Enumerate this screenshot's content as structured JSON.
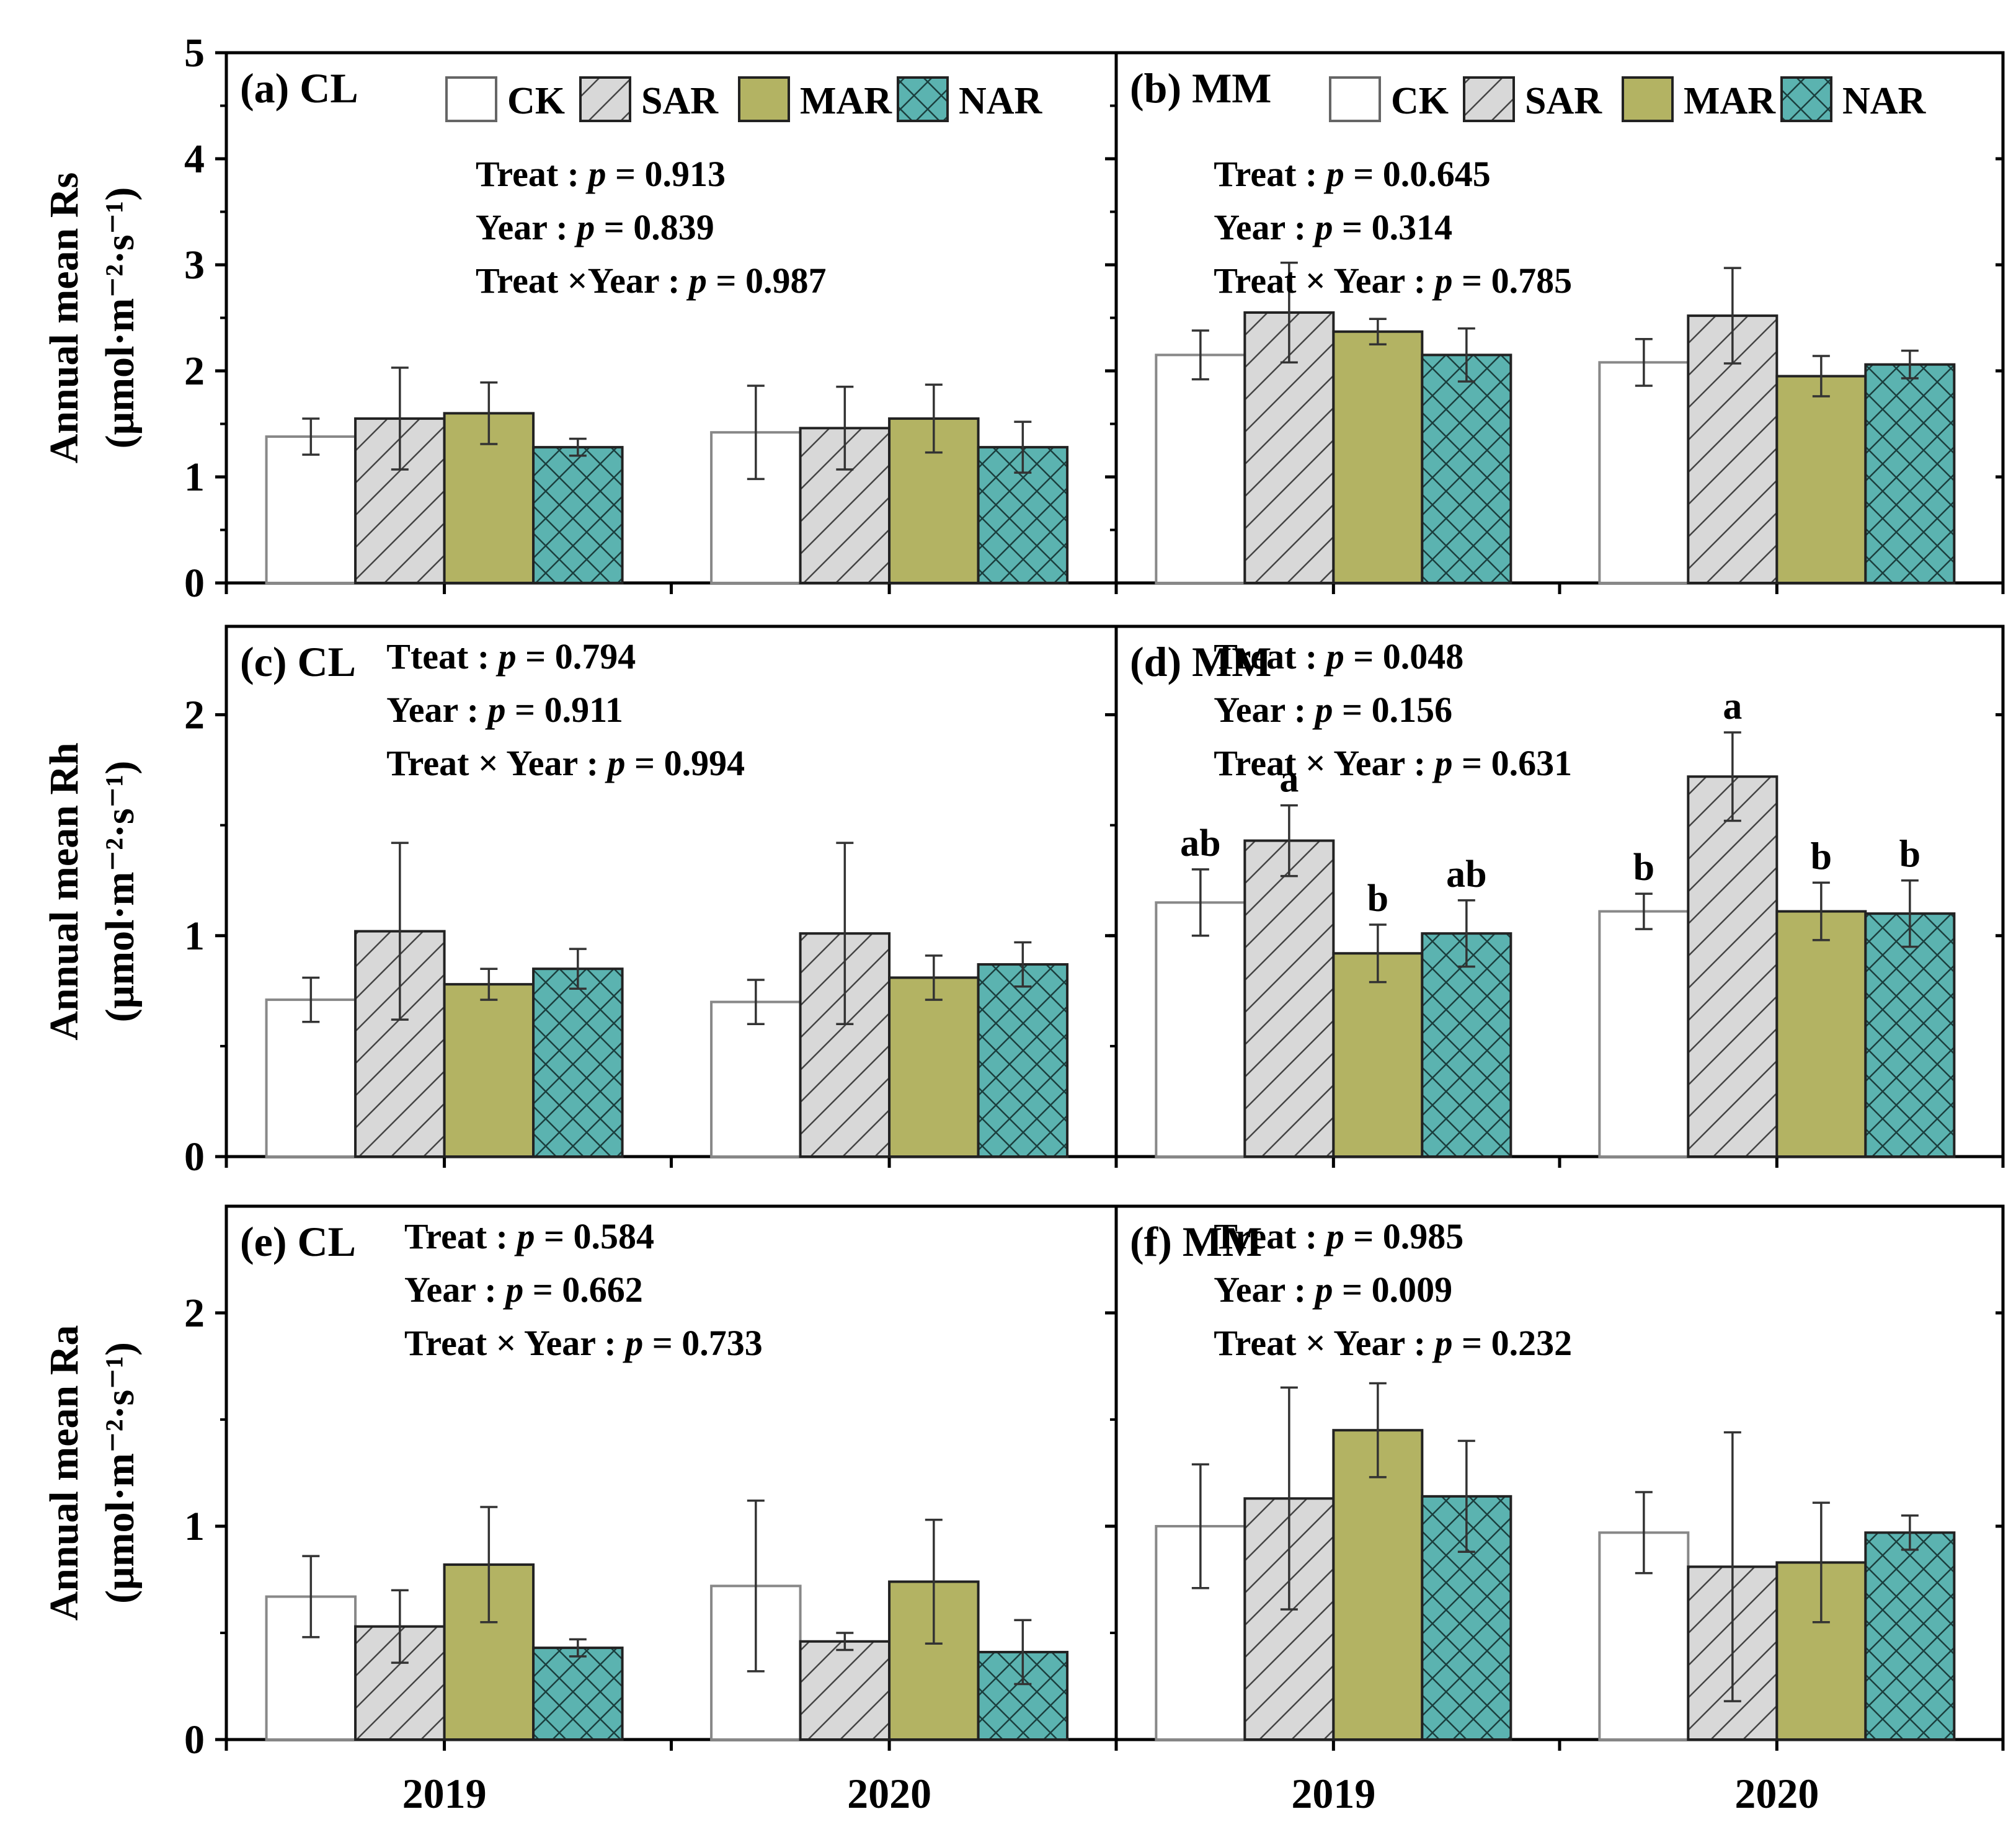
{
  "colors": {
    "CK": "#ffffff",
    "SAR": "#d8d8d8",
    "MAR": "#b3b363",
    "NAR": "#5bb3b0",
    "axis": "#000000"
  },
  "chart_data": [
    {
      "type": "bar",
      "id": "a",
      "panel_label": "(a) CL",
      "ylabel": [
        "Annual mean Rs",
        "(μmol·m⁻²·s⁻¹)"
      ],
      "ylim": [
        0,
        5
      ],
      "yticks": [
        0,
        1,
        2,
        3,
        4,
        5
      ],
      "categories": [
        "2019",
        "2020"
      ],
      "legend": true,
      "stats": [
        {
          "pre": "Treat : ",
          "p": "p",
          "post": " = 0.913"
        },
        {
          "pre": "Year : ",
          "p": "p",
          "post": " = 0.839"
        },
        {
          "pre": "Treat ×Year : ",
          "p": "p",
          "post": " = 0.987"
        }
      ],
      "series": [
        {
          "name": "CK",
          "values": [
            1.38,
            1.42
          ],
          "errors": [
            0.17,
            0.44
          ],
          "letters": []
        },
        {
          "name": "SAR",
          "values": [
            1.55,
            1.46
          ],
          "errors": [
            0.48,
            0.39
          ],
          "letters": []
        },
        {
          "name": "MAR",
          "values": [
            1.6,
            1.55
          ],
          "errors": [
            0.29,
            0.32
          ],
          "letters": []
        },
        {
          "name": "NAR",
          "values": [
            1.28,
            1.28
          ],
          "errors": [
            0.08,
            0.24
          ],
          "letters": []
        }
      ]
    },
    {
      "type": "bar",
      "id": "b",
      "panel_label": "(b) MM",
      "ylim": [
        0,
        5
      ],
      "yticks": [
        0,
        1,
        2,
        3,
        4,
        5
      ],
      "categories": [
        "2019",
        "2020"
      ],
      "legend": true,
      "stats": [
        {
          "pre": "Treat : ",
          "p": "p",
          "post": " = 0.0.645"
        },
        {
          "pre": "Year : ",
          "p": "p",
          "post": " = 0.314"
        },
        {
          "pre": "Treat × Year : ",
          "p": "p",
          "post": " = 0.785"
        }
      ],
      "series": [
        {
          "name": "CK",
          "values": [
            2.15,
            2.08
          ],
          "errors": [
            0.23,
            0.22
          ],
          "letters": []
        },
        {
          "name": "SAR",
          "values": [
            2.55,
            2.52
          ],
          "errors": [
            0.47,
            0.45
          ],
          "letters": []
        },
        {
          "name": "MAR",
          "values": [
            2.37,
            1.95
          ],
          "errors": [
            0.12,
            0.19
          ],
          "letters": []
        },
        {
          "name": "NAR",
          "values": [
            2.15,
            2.06
          ],
          "errors": [
            0.25,
            0.13
          ],
          "letters": []
        }
      ]
    },
    {
      "type": "bar",
      "id": "c",
      "panel_label": "(c) CL",
      "ylabel": [
        "Annual mean Rh",
        "(μmol·m⁻²·s⁻¹)"
      ],
      "ylim": [
        0,
        2.4
      ],
      "yticks": [
        0,
        1,
        2
      ],
      "categories": [
        "2019",
        "2020"
      ],
      "legend": false,
      "stats": [
        {
          "pre": "Tteat : ",
          "p": "p",
          "post": " = 0.794"
        },
        {
          "pre": "Year : ",
          "p": "p",
          "post": " = 0.911"
        },
        {
          "pre": "Treat × Year : ",
          "p": "p",
          "post": " = 0.994"
        }
      ],
      "series": [
        {
          "name": "CK",
          "values": [
            0.71,
            0.7
          ],
          "errors": [
            0.1,
            0.1
          ],
          "letters": []
        },
        {
          "name": "SAR",
          "values": [
            1.02,
            1.01
          ],
          "errors": [
            0.4,
            0.41
          ],
          "letters": []
        },
        {
          "name": "MAR",
          "values": [
            0.78,
            0.81
          ],
          "errors": [
            0.07,
            0.1
          ],
          "letters": []
        },
        {
          "name": "NAR",
          "values": [
            0.85,
            0.87
          ],
          "errors": [
            0.09,
            0.1
          ],
          "letters": []
        }
      ]
    },
    {
      "type": "bar",
      "id": "d",
      "panel_label": "(d) MM",
      "ylim": [
        0,
        2.4
      ],
      "yticks": [
        0,
        1,
        2
      ],
      "categories": [
        "2019",
        "2020"
      ],
      "legend": false,
      "stats": [
        {
          "pre": "Treat : ",
          "p": "p",
          "post": " = 0.048"
        },
        {
          "pre": "Year : ",
          "p": "p",
          "post": " = 0.156"
        },
        {
          "pre": "Treat × Year : ",
          "p": "p",
          "post": " = 0.631"
        }
      ],
      "series": [
        {
          "name": "CK",
          "values": [
            1.15,
            1.11
          ],
          "errors": [
            0.15,
            0.08
          ],
          "letters": [
            "ab",
            "b"
          ]
        },
        {
          "name": "SAR",
          "values": [
            1.43,
            1.72
          ],
          "errors": [
            0.16,
            0.2
          ],
          "letters": [
            "a",
            "a"
          ]
        },
        {
          "name": "MAR",
          "values": [
            0.92,
            1.11
          ],
          "errors": [
            0.13,
            0.13
          ],
          "letters": [
            "b",
            "b"
          ]
        },
        {
          "name": "NAR",
          "values": [
            1.01,
            1.1
          ],
          "errors": [
            0.15,
            0.15
          ],
          "letters": [
            "ab",
            "b"
          ]
        }
      ]
    },
    {
      "type": "bar",
      "id": "e",
      "panel_label": "(e) CL",
      "ylabel": [
        "Annual mean Ra",
        "(μmol·m⁻²·s⁻¹)"
      ],
      "ylim": [
        0,
        2.5
      ],
      "yticks": [
        0,
        1,
        2
      ],
      "categories": [
        "2019",
        "2020"
      ],
      "xlabels": true,
      "legend": false,
      "stats": [
        {
          "pre": "Treat : ",
          "p": "p",
          "post": " = 0.584"
        },
        {
          "pre": "Year : ",
          "p": "p",
          "post": " = 0.662"
        },
        {
          "pre": "Treat × Year : ",
          "p": "p",
          "post": " = 0.733"
        }
      ],
      "series": [
        {
          "name": "CK",
          "values": [
            0.67,
            0.72
          ],
          "errors": [
            0.19,
            0.4
          ],
          "letters": []
        },
        {
          "name": "SAR",
          "values": [
            0.53,
            0.46
          ],
          "errors": [
            0.17,
            0.04
          ],
          "letters": []
        },
        {
          "name": "MAR",
          "values": [
            0.82,
            0.74
          ],
          "errors": [
            0.27,
            0.29
          ],
          "letters": []
        },
        {
          "name": "NAR",
          "values": [
            0.43,
            0.41
          ],
          "errors": [
            0.04,
            0.15
          ],
          "letters": []
        }
      ]
    },
    {
      "type": "bar",
      "id": "f",
      "panel_label": "(f) MM",
      "ylim": [
        0,
        2.5
      ],
      "yticks": [
        0,
        1,
        2
      ],
      "categories": [
        "2019",
        "2020"
      ],
      "xlabels": true,
      "legend": false,
      "stats": [
        {
          "pre": "Treat : ",
          "p": "p",
          "post": " = 0.985"
        },
        {
          "pre": "Year : ",
          "p": "p",
          "post": " = 0.009"
        },
        {
          "pre": "Treat × Year : ",
          "p": "p",
          "post": " = 0.232"
        }
      ],
      "series": [
        {
          "name": "CK",
          "values": [
            1.0,
            0.97
          ],
          "errors": [
            0.29,
            0.19
          ],
          "letters": []
        },
        {
          "name": "SAR",
          "values": [
            1.13,
            0.81
          ],
          "errors": [
            0.52,
            0.63
          ],
          "letters": []
        },
        {
          "name": "MAR",
          "values": [
            1.45,
            0.83
          ],
          "errors": [
            0.22,
            0.28
          ],
          "letters": []
        },
        {
          "name": "NAR",
          "values": [
            1.14,
            0.97
          ],
          "errors": [
            0.26,
            0.08
          ],
          "letters": []
        }
      ]
    }
  ]
}
